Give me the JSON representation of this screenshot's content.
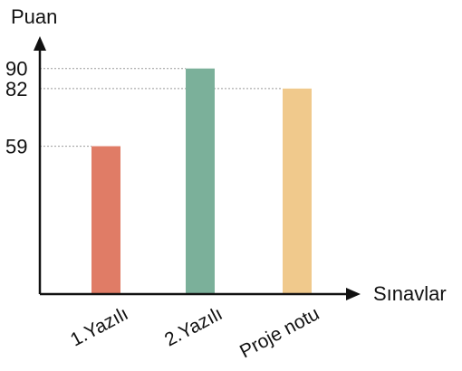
{
  "chart_data": {
    "type": "bar",
    "ylabel": "Puan",
    "xlabel": "Sınavlar",
    "categories": [
      "1.Yazılı",
      "2.Yazılı",
      "Proje notu"
    ],
    "values": [
      59,
      90,
      82
    ],
    "colors": [
      "#e07c66",
      "#7bb09a",
      "#f0c98c"
    ],
    "y_ticks": [
      59,
      82,
      90
    ],
    "ylim": [
      0,
      100
    ],
    "grid": "dotted guide lines from y-axis to bar tops",
    "axis_color": "#111111",
    "guide_color": "#999999"
  }
}
